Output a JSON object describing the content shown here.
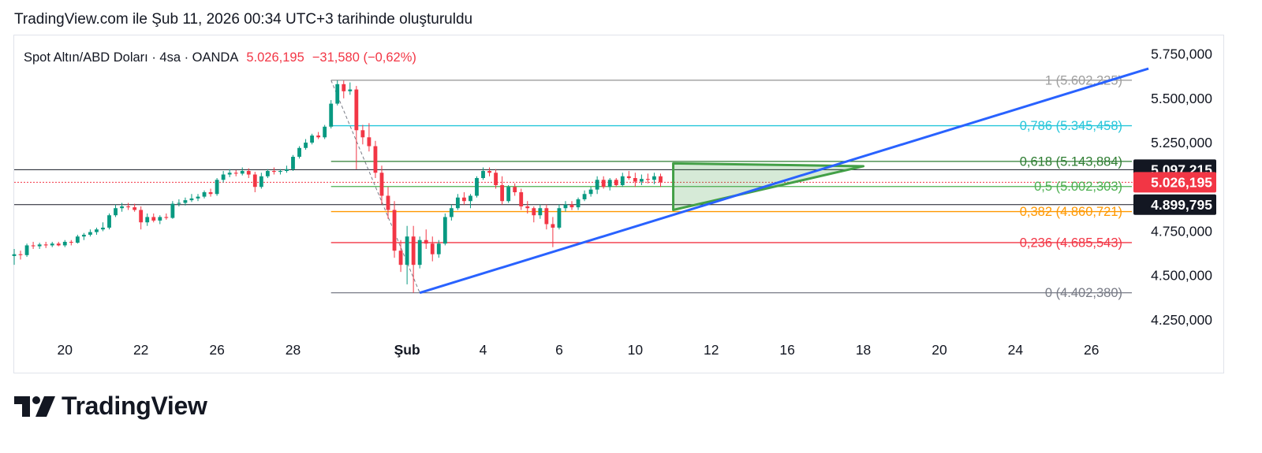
{
  "header": {
    "title": "TradingView.com ile Şub 11, 2026 00:34 UTC+3 tarihinde oluşturuldu"
  },
  "logo": {
    "text": "TradingView"
  },
  "colors": {
    "up": "#089981",
    "down": "#f23645",
    "trend": "#2962ff",
    "fib_1": "#9e9e9e",
    "fib_0786": "#26c6da",
    "fib_0618": "#2e7d32",
    "fib_05": "#4caf50",
    "fib_0382": "#ff9800",
    "fib_0236": "#f23645",
    "fib_0": "#787b86",
    "triangle": "#43a047"
  },
  "chart_data": {
    "type": "candlestick",
    "symbol": {
      "name": "Spot Altın/ABD Doları · 4sa · OANDA",
      "last": "5.026,195",
      "change": "−31,580 (−0,62%)"
    },
    "y_axis": {
      "ticks": [
        {
          "value": 5750,
          "label": "5.750,000"
        },
        {
          "value": 5500,
          "label": "5.500,000"
        },
        {
          "value": 5250,
          "label": "5.250,000"
        },
        {
          "value": 4750,
          "label": "4.750,000"
        },
        {
          "value": 4500,
          "label": "4.500,000"
        },
        {
          "value": 4250,
          "label": "4.250,000"
        }
      ],
      "range": [
        4165,
        5855
      ]
    },
    "x_axis": {
      "ticks": [
        {
          "x": 0,
          "label": "20",
          "bold": false
        },
        {
          "x": 12,
          "label": "22",
          "bold": false
        },
        {
          "x": 24,
          "label": "26",
          "bold": false
        },
        {
          "x": 36,
          "label": "28",
          "bold": false
        },
        {
          "x": 54,
          "label": "Şub",
          "bold": true
        },
        {
          "x": 66,
          "label": "4",
          "bold": false
        },
        {
          "x": 78,
          "label": "6",
          "bold": false
        },
        {
          "x": 90,
          "label": "10",
          "bold": false
        },
        {
          "x": 102,
          "label": "12",
          "bold": false
        },
        {
          "x": 114,
          "label": "16",
          "bold": false
        },
        {
          "x": 126,
          "label": "18",
          "bold": false
        },
        {
          "x": 138,
          "label": "20",
          "bold": false
        },
        {
          "x": 150,
          "label": "24",
          "bold": false
        },
        {
          "x": 162,
          "label": "26",
          "bold": false
        }
      ],
      "range": [
        -8,
        168
      ]
    },
    "price_labels": [
      {
        "value": 5097.215,
        "label": "5.097,215",
        "color": "#131722"
      },
      {
        "value": 5026.195,
        "label": "5.026,195",
        "color": "#f23645"
      },
      {
        "value": 4899.795,
        "label": "4.899,795",
        "color": "#131722"
      }
    ],
    "horizontal_lines": [
      5097.215,
      4899.795
    ],
    "last_price_line": 5026.195,
    "fibonacci": {
      "x_start": 42,
      "levels": [
        {
          "ratio": "1",
          "value": 5602.225,
          "label": "1 (5.602,225)",
          "color": "#9e9e9e"
        },
        {
          "ratio": "0,786",
          "value": 5345.458,
          "label": "0,786 (5.345,458)",
          "color": "#26c6da"
        },
        {
          "ratio": "0,618",
          "value": 5143.884,
          "label": "0,618 (5.143,884)",
          "color": "#2e7d32"
        },
        {
          "ratio": "0,5",
          "value": 5002.303,
          "label": "0,5 (5.002,303)",
          "color": "#4caf50"
        },
        {
          "ratio": "0,382",
          "value": 4860.721,
          "label": "0,382 (4.860,721)",
          "color": "#ff9800"
        },
        {
          "ratio": "0,236",
          "value": 4685.543,
          "label": "0,236 (4.685,543)",
          "color": "#f23645"
        },
        {
          "ratio": "0",
          "value": 4402.38,
          "label": "0 (4.402,380)",
          "color": "#787b86"
        }
      ]
    },
    "trendline": {
      "x1": 56,
      "y1": 4402,
      "x2": 171,
      "y2": 5668
    },
    "fib_trend_dashed": {
      "x1": 42,
      "y1": 5602,
      "x2": 56,
      "y2": 4402
    },
    "triangle": [
      {
        "x": 96,
        "y": 5133
      },
      {
        "x": 96,
        "y": 4870
      },
      {
        "x": 126,
        "y": 5117
      }
    ],
    "candles": [
      {
        "x": -8,
        "o": 4610,
        "h": 4650,
        "l": 4560,
        "c": 4620
      },
      {
        "x": -7,
        "o": 4620,
        "h": 4640,
        "l": 4590,
        "c": 4615
      },
      {
        "x": -6,
        "o": 4615,
        "h": 4680,
        "l": 4605,
        "c": 4670
      },
      {
        "x": -5,
        "o": 4670,
        "h": 4690,
        "l": 4650,
        "c": 4665
      },
      {
        "x": -4,
        "o": 4665,
        "h": 4685,
        "l": 4650,
        "c": 4675
      },
      {
        "x": -3,
        "o": 4675,
        "h": 4690,
        "l": 4655,
        "c": 4670
      },
      {
        "x": -2,
        "o": 4670,
        "h": 4690,
        "l": 4660,
        "c": 4680
      },
      {
        "x": -1,
        "o": 4680,
        "h": 4690,
        "l": 4665,
        "c": 4670
      },
      {
        "x": 0,
        "o": 4670,
        "h": 4700,
        "l": 4660,
        "c": 4690
      },
      {
        "x": 1,
        "o": 4690,
        "h": 4700,
        "l": 4670,
        "c": 4685
      },
      {
        "x": 2,
        "o": 4685,
        "h": 4730,
        "l": 4680,
        "c": 4720
      },
      {
        "x": 3,
        "o": 4720,
        "h": 4740,
        "l": 4700,
        "c": 4730
      },
      {
        "x": 4,
        "o": 4730,
        "h": 4760,
        "l": 4720,
        "c": 4745
      },
      {
        "x": 5,
        "o": 4745,
        "h": 4770,
        "l": 4730,
        "c": 4760
      },
      {
        "x": 6,
        "o": 4760,
        "h": 4800,
        "l": 4750,
        "c": 4770
      },
      {
        "x": 7,
        "o": 4770,
        "h": 4850,
        "l": 4760,
        "c": 4840
      },
      {
        "x": 8,
        "o": 4840,
        "h": 4900,
        "l": 4830,
        "c": 4880
      },
      {
        "x": 9,
        "o": 4880,
        "h": 4910,
        "l": 4860,
        "c": 4890
      },
      {
        "x": 10,
        "o": 4890,
        "h": 4910,
        "l": 4870,
        "c": 4885
      },
      {
        "x": 11,
        "o": 4885,
        "h": 4905,
        "l": 4860,
        "c": 4870
      },
      {
        "x": 12,
        "o": 4870,
        "h": 4890,
        "l": 4760,
        "c": 4800
      },
      {
        "x": 13,
        "o": 4800,
        "h": 4850,
        "l": 4780,
        "c": 4830
      },
      {
        "x": 14,
        "o": 4830,
        "h": 4850,
        "l": 4800,
        "c": 4810
      },
      {
        "x": 15,
        "o": 4810,
        "h": 4840,
        "l": 4790,
        "c": 4830
      },
      {
        "x": 16,
        "o": 4830,
        "h": 4850,
        "l": 4815,
        "c": 4825
      },
      {
        "x": 17,
        "o": 4825,
        "h": 4920,
        "l": 4820,
        "c": 4905
      },
      {
        "x": 18,
        "o": 4905,
        "h": 4930,
        "l": 4890,
        "c": 4910
      },
      {
        "x": 19,
        "o": 4910,
        "h": 4940,
        "l": 4895,
        "c": 4925
      },
      {
        "x": 20,
        "o": 4925,
        "h": 4960,
        "l": 4915,
        "c": 4935
      },
      {
        "x": 21,
        "o": 4935,
        "h": 4960,
        "l": 4920,
        "c": 4945
      },
      {
        "x": 22,
        "o": 4945,
        "h": 4980,
        "l": 4935,
        "c": 4970
      },
      {
        "x": 23,
        "o": 4970,
        "h": 4990,
        "l": 4945,
        "c": 4960
      },
      {
        "x": 24,
        "o": 4960,
        "h": 5050,
        "l": 4950,
        "c": 5040
      },
      {
        "x": 25,
        "o": 5040,
        "h": 5090,
        "l": 5025,
        "c": 5070
      },
      {
        "x": 26,
        "o": 5070,
        "h": 5100,
        "l": 5055,
        "c": 5080
      },
      {
        "x": 27,
        "o": 5080,
        "h": 5095,
        "l": 5060,
        "c": 5075
      },
      {
        "x": 28,
        "o": 5075,
        "h": 5110,
        "l": 5065,
        "c": 5090
      },
      {
        "x": 29,
        "o": 5090,
        "h": 5105,
        "l": 5050,
        "c": 5070
      },
      {
        "x": 30,
        "o": 5070,
        "h": 5085,
        "l": 4970,
        "c": 5000
      },
      {
        "x": 31,
        "o": 5000,
        "h": 5080,
        "l": 4990,
        "c": 5060
      },
      {
        "x": 32,
        "o": 5060,
        "h": 5100,
        "l": 5050,
        "c": 5090
      },
      {
        "x": 33,
        "o": 5090,
        "h": 5110,
        "l": 5070,
        "c": 5085
      },
      {
        "x": 34,
        "o": 5085,
        "h": 5100,
        "l": 5070,
        "c": 5090
      },
      {
        "x": 35,
        "o": 5090,
        "h": 5120,
        "l": 5080,
        "c": 5100
      },
      {
        "x": 36,
        "o": 5100,
        "h": 5180,
        "l": 5090,
        "c": 5170
      },
      {
        "x": 37,
        "o": 5170,
        "h": 5230,
        "l": 5160,
        "c": 5220
      },
      {
        "x": 38,
        "o": 5220,
        "h": 5270,
        "l": 5210,
        "c": 5250
      },
      {
        "x": 39,
        "o": 5250,
        "h": 5300,
        "l": 5240,
        "c": 5290
      },
      {
        "x": 40,
        "o": 5290,
        "h": 5310,
        "l": 5270,
        "c": 5280
      },
      {
        "x": 41,
        "o": 5280,
        "h": 5350,
        "l": 5270,
        "c": 5340
      },
      {
        "x": 42,
        "o": 5340,
        "h": 5490,
        "l": 5330,
        "c": 5470
      },
      {
        "x": 43,
        "o": 5470,
        "h": 5602,
        "l": 5460,
        "c": 5580
      },
      {
        "x": 44,
        "o": 5580,
        "h": 5600,
        "l": 5500,
        "c": 5540
      },
      {
        "x": 45,
        "o": 5540,
        "h": 5590,
        "l": 5520,
        "c": 5550
      },
      {
        "x": 46,
        "o": 5550,
        "h": 5570,
        "l": 5100,
        "c": 5320
      },
      {
        "x": 47,
        "o": 5320,
        "h": 5350,
        "l": 5240,
        "c": 5280
      },
      {
        "x": 48,
        "o": 5280,
        "h": 5360,
        "l": 5200,
        "c": 5230
      },
      {
        "x": 49,
        "o": 5230,
        "h": 5260,
        "l": 5050,
        "c": 5080
      },
      {
        "x": 50,
        "o": 5080,
        "h": 5120,
        "l": 4900,
        "c": 4950
      },
      {
        "x": 51,
        "o": 4950,
        "h": 5000,
        "l": 4820,
        "c": 4870
      },
      {
        "x": 52,
        "o": 4870,
        "h": 4920,
        "l": 4600,
        "c": 4640
      },
      {
        "x": 53,
        "o": 4640,
        "h": 4700,
        "l": 4520,
        "c": 4560
      },
      {
        "x": 54,
        "o": 4560,
        "h": 4780,
        "l": 4450,
        "c": 4720
      },
      {
        "x": 55,
        "o": 4720,
        "h": 4780,
        "l": 4402,
        "c": 4560
      },
      {
        "x": 56,
        "o": 4560,
        "h": 4720,
        "l": 4540,
        "c": 4700
      },
      {
        "x": 57,
        "o": 4700,
        "h": 4760,
        "l": 4650,
        "c": 4680
      },
      {
        "x": 58,
        "o": 4680,
        "h": 4720,
        "l": 4580,
        "c": 4620
      },
      {
        "x": 59,
        "o": 4620,
        "h": 4700,
        "l": 4600,
        "c": 4680
      },
      {
        "x": 60,
        "o": 4680,
        "h": 4850,
        "l": 4670,
        "c": 4830
      },
      {
        "x": 61,
        "o": 4830,
        "h": 4900,
        "l": 4810,
        "c": 4880
      },
      {
        "x": 62,
        "o": 4880,
        "h": 4960,
        "l": 4870,
        "c": 4940
      },
      {
        "x": 63,
        "o": 4940,
        "h": 4970,
        "l": 4900,
        "c": 4920
      },
      {
        "x": 64,
        "o": 4920,
        "h": 4960,
        "l": 4880,
        "c": 4950
      },
      {
        "x": 65,
        "o": 4950,
        "h": 5060,
        "l": 4940,
        "c": 5050
      },
      {
        "x": 66,
        "o": 5050,
        "h": 5110,
        "l": 5040,
        "c": 5090
      },
      {
        "x": 67,
        "o": 5090,
        "h": 5110,
        "l": 5060,
        "c": 5080
      },
      {
        "x": 68,
        "o": 5080,
        "h": 5100,
        "l": 4990,
        "c": 5010
      },
      {
        "x": 69,
        "o": 5010,
        "h": 5060,
        "l": 4900,
        "c": 4920
      },
      {
        "x": 70,
        "o": 4920,
        "h": 5010,
        "l": 4910,
        "c": 5000
      },
      {
        "x": 71,
        "o": 5000,
        "h": 5020,
        "l": 4950,
        "c": 4970
      },
      {
        "x": 72,
        "o": 4970,
        "h": 4990,
        "l": 4870,
        "c": 4890
      },
      {
        "x": 73,
        "o": 4890,
        "h": 4920,
        "l": 4850,
        "c": 4880
      },
      {
        "x": 74,
        "o": 4880,
        "h": 4890,
        "l": 4800,
        "c": 4840
      },
      {
        "x": 75,
        "o": 4840,
        "h": 4900,
        "l": 4820,
        "c": 4880
      },
      {
        "x": 76,
        "o": 4880,
        "h": 4900,
        "l": 4760,
        "c": 4790
      },
      {
        "x": 77,
        "o": 4790,
        "h": 4830,
        "l": 4660,
        "c": 4770
      },
      {
        "x": 78,
        "o": 4770,
        "h": 4900,
        "l": 4760,
        "c": 4880
      },
      {
        "x": 79,
        "o": 4880,
        "h": 4920,
        "l": 4860,
        "c": 4900
      },
      {
        "x": 80,
        "o": 4900,
        "h": 4920,
        "l": 4870,
        "c": 4885
      },
      {
        "x": 81,
        "o": 4885,
        "h": 4940,
        "l": 4870,
        "c": 4930
      },
      {
        "x": 82,
        "o": 4930,
        "h": 4980,
        "l": 4920,
        "c": 4960
      },
      {
        "x": 83,
        "o": 4960,
        "h": 5000,
        "l": 4945,
        "c": 4985
      },
      {
        "x": 84,
        "o": 4985,
        "h": 5060,
        "l": 4960,
        "c": 5040
      },
      {
        "x": 85,
        "o": 5040,
        "h": 5060,
        "l": 4990,
        "c": 5000
      },
      {
        "x": 86,
        "o": 5000,
        "h": 5050,
        "l": 4980,
        "c": 5040
      },
      {
        "x": 87,
        "o": 5040,
        "h": 5050,
        "l": 5000,
        "c": 5010
      },
      {
        "x": 88,
        "o": 5010,
        "h": 5080,
        "l": 5000,
        "c": 5060
      },
      {
        "x": 89,
        "o": 5060,
        "h": 5090,
        "l": 5040,
        "c": 5050
      },
      {
        "x": 90,
        "o": 5050,
        "h": 5080,
        "l": 5000,
        "c": 5030
      },
      {
        "x": 91,
        "o": 5030,
        "h": 5070,
        "l": 5010,
        "c": 5045
      },
      {
        "x": 92,
        "o": 5045,
        "h": 5075,
        "l": 5020,
        "c": 5040
      },
      {
        "x": 93,
        "o": 5040,
        "h": 5080,
        "l": 5015,
        "c": 5060
      },
      {
        "x": 94,
        "o": 5060,
        "h": 5075,
        "l": 5000,
        "c": 5026
      }
    ]
  }
}
